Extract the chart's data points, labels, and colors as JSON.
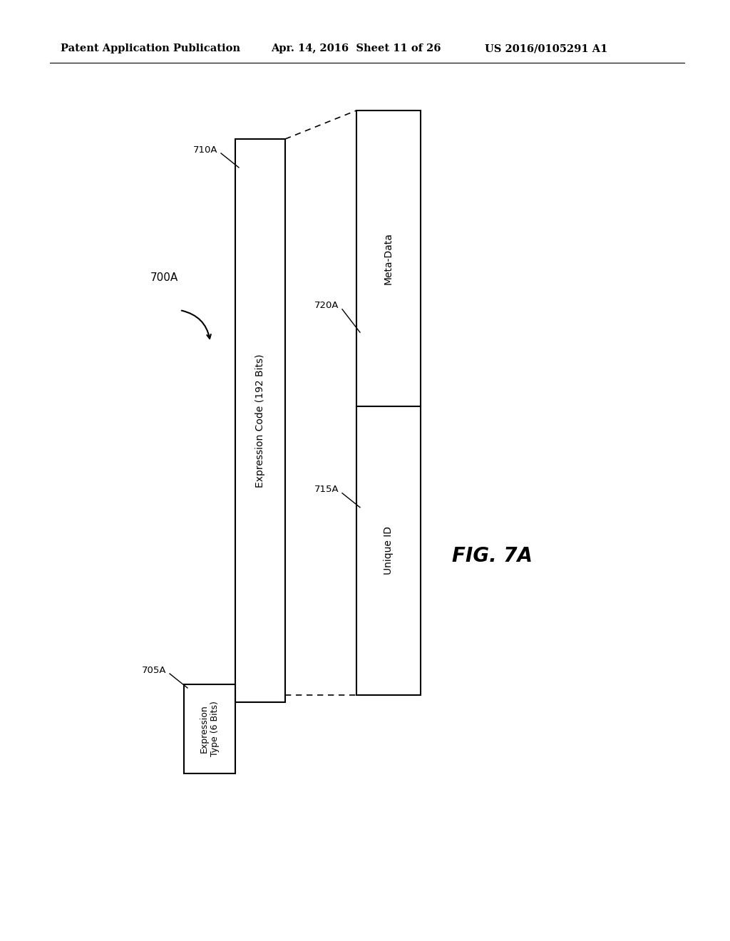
{
  "bg_color": "#ffffff",
  "header_left": "Patent Application Publication",
  "header_mid": "Apr. 14, 2016  Sheet 11 of 26",
  "header_right": "US 2016/0105291 A1",
  "fig_label": "FIG. 7A",
  "label_700A": "700A",
  "label_710A": "710A",
  "label_705A": "705A",
  "label_715A": "715A",
  "label_720A": "720A",
  "text_expr_code": "Expression Code (192 Bits)",
  "text_expr_type": "Expression\nType (6 Bits)",
  "text_unique_id": "Unique ID",
  "text_meta_data": "Meta-Data"
}
